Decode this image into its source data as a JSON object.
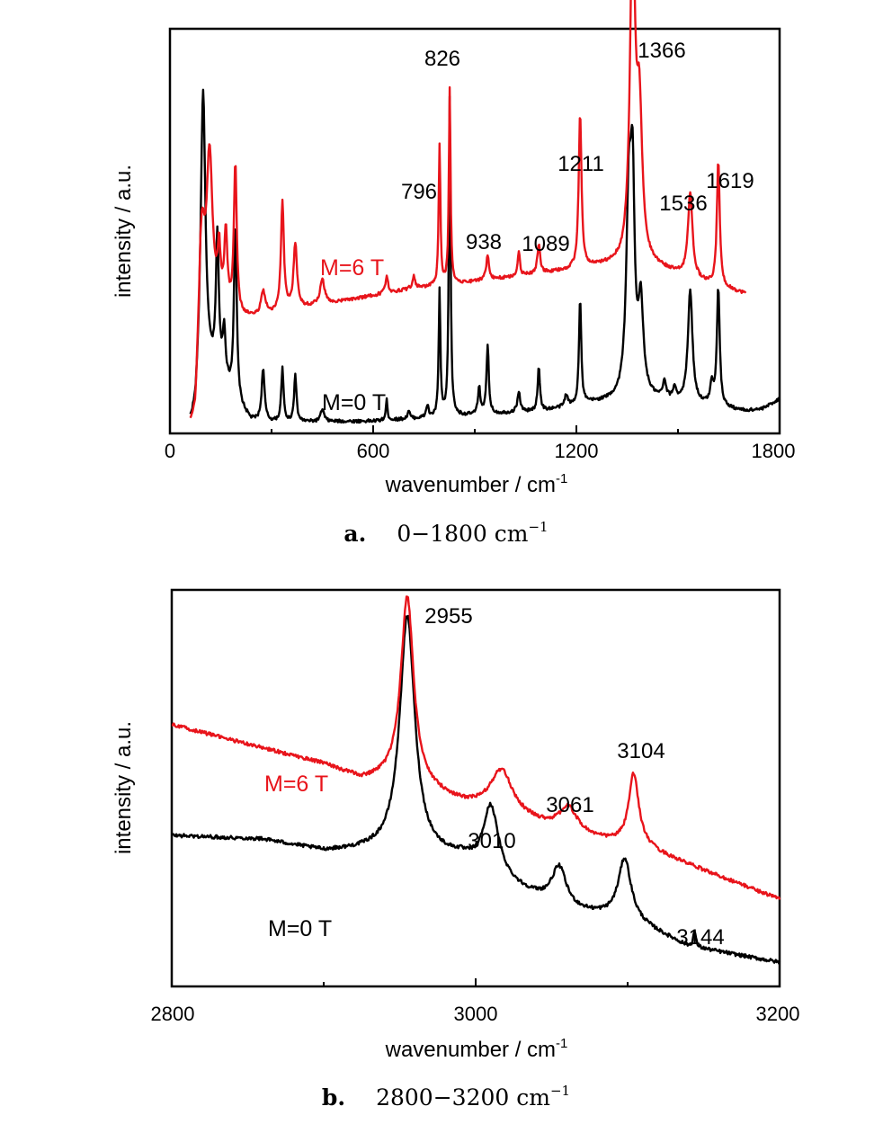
{
  "colors": {
    "series_red": "#e8141b",
    "series_black": "#000000",
    "axis": "#000000"
  },
  "chart_data": [
    {
      "type": "line",
      "caption_letter": "a.",
      "caption_range": "0−1800 cm",
      "caption_sup": "−1",
      "xlabel": "wavenumber / cm",
      "xlabel_sup": "-1",
      "ylabel": "intensity / a.u.",
      "xlim": [
        0,
        1800
      ],
      "ylim": [
        0,
        1
      ],
      "xticks": [
        0,
        600,
        1200,
        1800
      ],
      "tick_labels": [
        "0",
        "600",
        "1200",
        "1800"
      ],
      "grid": false,
      "series": [
        {
          "name": "M=6 T",
          "color": "#e8141b",
          "baseline": [
            [
              60,
              0.0
            ],
            [
              75,
              0.02
            ],
            [
              90,
              0.28
            ],
            [
              150,
              0.3
            ],
            [
              200,
              0.27
            ],
            [
              260,
              0.27
            ],
            [
              350,
              0.29
            ],
            [
              500,
              0.31
            ],
            [
              700,
              0.34
            ],
            [
              900,
              0.36
            ],
            [
              1100,
              0.38
            ],
            [
              1300,
              0.4
            ],
            [
              1450,
              0.39
            ],
            [
              1600,
              0.35
            ],
            [
              1700,
              0.33
            ]
          ],
          "peaks": [
            [
              95,
              0.19,
              9
            ],
            [
              117,
              0.38,
              10
            ],
            [
              145,
              0.12,
              5
            ],
            [
              165,
              0.18,
              5
            ],
            [
              193,
              0.37,
              5
            ],
            [
              275,
              0.06,
              8
            ],
            [
              332,
              0.27,
              5
            ],
            [
              370,
              0.16,
              6
            ],
            [
              450,
              0.06,
              8
            ],
            [
              640,
              0.04,
              5
            ],
            [
              720,
              0.03,
              5
            ],
            [
              796,
              0.35,
              3
            ],
            [
              826,
              0.48,
              3
            ],
            [
              938,
              0.06,
              5
            ],
            [
              1030,
              0.06,
              4
            ],
            [
              1089,
              0.07,
              5
            ],
            [
              1211,
              0.38,
              5
            ],
            [
              1366,
              0.83,
              9
            ],
            [
              1386,
              0.35,
              10
            ],
            [
              1536,
              0.21,
              8
            ],
            [
              1619,
              0.31,
              5
            ]
          ]
        },
        {
          "name": "M=0 T",
          "color": "#000000",
          "baseline": [
            [
              60,
              0.0
            ],
            [
              75,
              0.02
            ],
            [
              92,
              0.15
            ],
            [
              150,
              0.12
            ],
            [
              200,
              0.05
            ],
            [
              240,
              0.015
            ],
            [
              300,
              0.012
            ],
            [
              600,
              0.015
            ],
            [
              900,
              0.03
            ],
            [
              1100,
              0.04
            ],
            [
              1250,
              0.06
            ],
            [
              1400,
              0.07
            ],
            [
              1500,
              0.06
            ],
            [
              1600,
              0.05
            ],
            [
              1700,
              0.04
            ],
            [
              1750,
              0.045
            ],
            [
              1800,
              0.07
            ]
          ],
          "peaks": [
            [
              98,
              0.68,
              8
            ],
            [
              140,
              0.34,
              5
            ],
            [
              160,
              0.12,
              5
            ],
            [
              193,
              0.43,
              5
            ],
            [
              275,
              0.13,
              5
            ],
            [
              332,
              0.13,
              4
            ],
            [
              370,
              0.12,
              4
            ],
            [
              450,
              0.03,
              6
            ],
            [
              640,
              0.05,
              3
            ],
            [
              705,
              0.02,
              4
            ],
            [
              760,
              0.03,
              4
            ],
            [
              796,
              0.31,
              3
            ],
            [
              826,
              0.79,
              3
            ],
            [
              913,
              0.07,
              4
            ],
            [
              938,
              0.17,
              4
            ],
            [
              1030,
              0.05,
              5
            ],
            [
              1089,
              0.11,
              4
            ],
            [
              1170,
              0.03,
              5
            ],
            [
              1211,
              0.26,
              4
            ],
            [
              1355,
              0.48,
              9
            ],
            [
              1366,
              0.45,
              7
            ],
            [
              1390,
              0.22,
              9
            ],
            [
              1460,
              0.04,
              6
            ],
            [
              1490,
              0.03,
              6
            ],
            [
              1536,
              0.28,
              8
            ],
            [
              1600,
              0.05,
              6
            ],
            [
              1619,
              0.29,
              5
            ]
          ]
        }
      ],
      "series_labels": [
        "M=6 T",
        "M=0 T"
      ],
      "annotations": [
        "826",
        "1366",
        "796",
        "1211",
        "1619",
        "1536",
        "938",
        "1089"
      ]
    },
    {
      "type": "line",
      "caption_letter": "b.",
      "caption_range": "2800−3200 cm",
      "caption_sup": "−1",
      "xlabel": "wavenumber / cm",
      "xlabel_sup": "-1",
      "ylabel": "intensity / a.u.",
      "xlim": [
        2800,
        3200
      ],
      "ylim": [
        0,
        1
      ],
      "xticks": [
        2800,
        3000,
        3200
      ],
      "tick_labels": [
        "2800",
        "3000",
        "3200"
      ],
      "grid": false,
      "series": [
        {
          "name": "M=6 T",
          "color": "#e8141b",
          "baseline": [
            [
              2800,
              0.64
            ],
            [
              2900,
              0.54
            ],
            [
              2925,
              0.5
            ],
            [
              2950,
              0.5
            ],
            [
              2990,
              0.44
            ],
            [
              3040,
              0.39
            ],
            [
              3080,
              0.35
            ],
            [
              3110,
              0.33
            ],
            [
              3200,
              0.2
            ]
          ],
          "peaks": [
            [
              2955,
              0.47,
              5
            ],
            [
              3017,
              0.11,
              9
            ],
            [
              3061,
              0.06,
              7
            ],
            [
              3104,
              0.18,
              4
            ]
          ]
        },
        {
          "name": "M=0 T",
          "color": "#000000",
          "baseline": [
            [
              2800,
              0.36
            ],
            [
              2860,
              0.35
            ],
            [
              2900,
              0.32
            ],
            [
              2930,
              0.32
            ],
            [
              2990,
              0.3
            ],
            [
              3030,
              0.22
            ],
            [
              3060,
              0.17
            ],
            [
              3100,
              0.15
            ],
            [
              3140,
              0.08
            ],
            [
              3200,
              0.04
            ]
          ],
          "peaks": [
            [
              2955,
              0.6,
              6
            ],
            [
              3010,
              0.17,
              6
            ],
            [
              3055,
              0.1,
              6
            ],
            [
              3098,
              0.15,
              5
            ],
            [
              3144,
              0.04,
              1
            ]
          ]
        }
      ],
      "series_labels": [
        "M=6 T",
        "M=0 T"
      ],
      "annotations": [
        "2955",
        "3104",
        "3061",
        "3010",
        "3144"
      ]
    }
  ]
}
